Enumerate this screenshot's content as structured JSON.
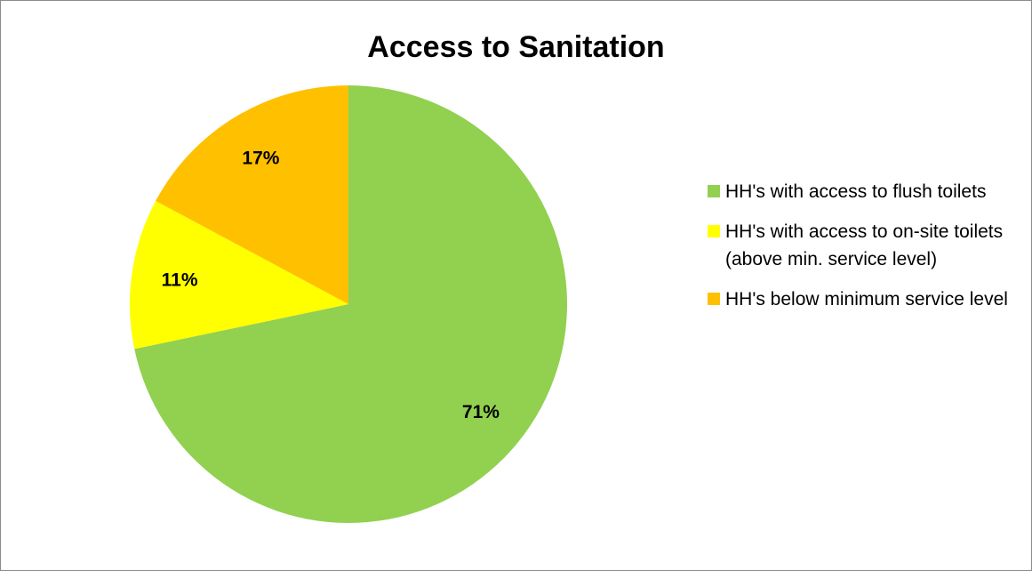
{
  "chart_data": {
    "type": "pie",
    "title": "Access to Sanitation",
    "slices": [
      {
        "name": "HH's with access to flush toilets",
        "value": 71,
        "label": "71%",
        "color": "#92d050"
      },
      {
        "name": "HH's with access to on-site toilets (above min. service level)",
        "value": 11,
        "label": "11%",
        "color": "#ffff00"
      },
      {
        "name": "HH's below minimum service level",
        "value": 17,
        "label": "17%",
        "color": "#ffc000"
      }
    ],
    "legend_position": "right"
  }
}
